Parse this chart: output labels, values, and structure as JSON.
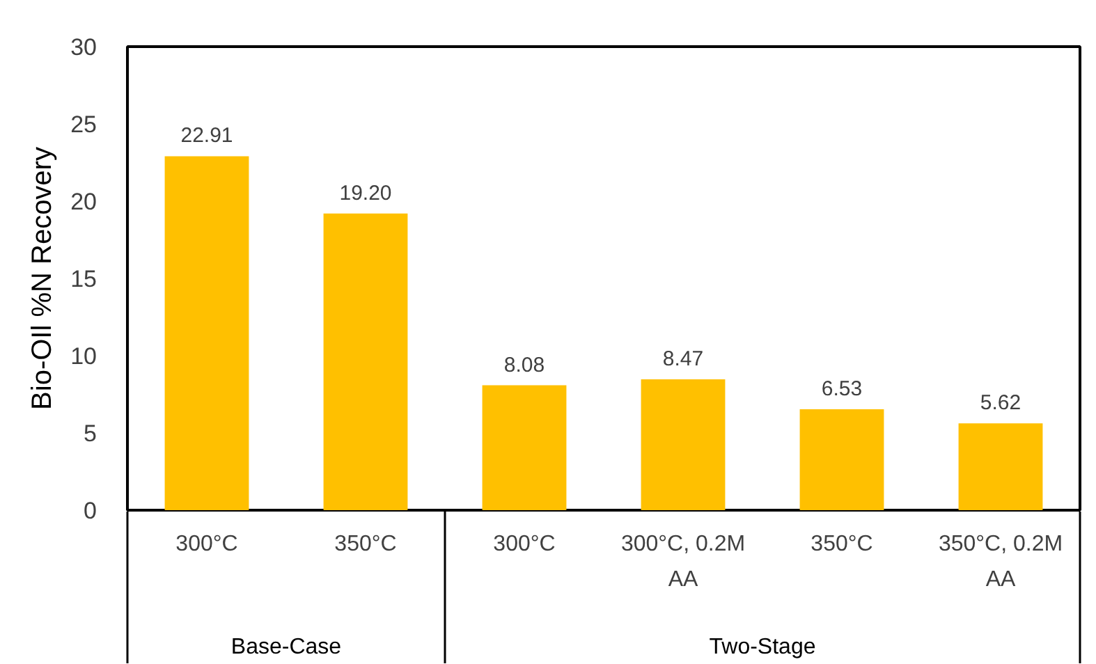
{
  "chart_data": {
    "type": "bar",
    "ylabel": "Bio-OIl %N Recovery",
    "categories": [
      "300°C",
      "350°C",
      "300°C",
      "300°C, 0.2M AA",
      "350°C",
      "350°C, 0.2M AA"
    ],
    "values": [
      22.91,
      19.2,
      8.08,
      8.47,
      6.53,
      5.62
    ],
    "value_labels": [
      "22.91",
      "19.20",
      "8.08",
      "8.47",
      "6.53",
      "5.62"
    ],
    "color": "#ffc000",
    "ylim": [
      0,
      30
    ],
    "yticks": [
      0,
      5,
      10,
      15,
      20,
      25,
      30
    ],
    "grid": false,
    "annotations": [
      "Base-Case",
      "Two-Stage"
    ]
  }
}
